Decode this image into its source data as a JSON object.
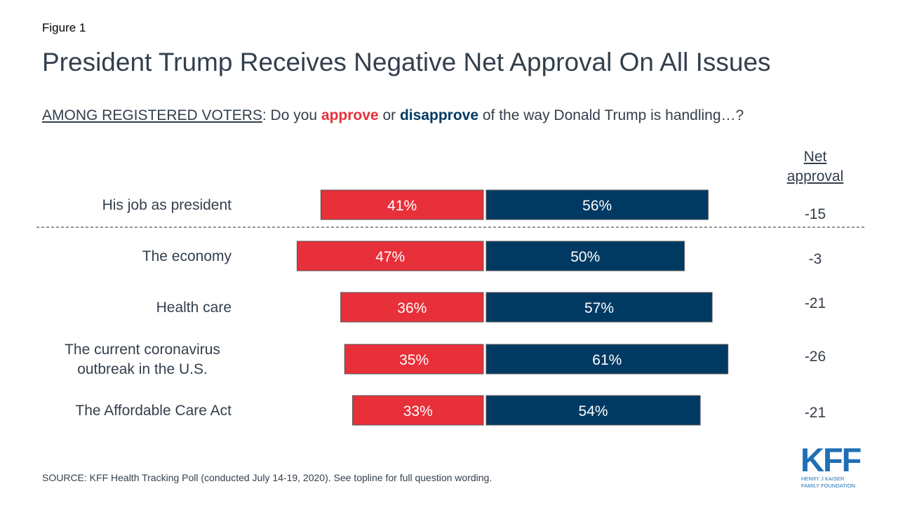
{
  "figure_label": "Figure 1",
  "title": "President Trump Receives Negative Net Approval On All Issues",
  "question": {
    "prefix": "AMONG REGISTERED VOTERS",
    "text1": ": Do you ",
    "approve": "approve",
    "text2": " or ",
    "disapprove": "disapprove",
    "text3": " of the way Donald Trump is handling…?"
  },
  "net_header": [
    "Net",
    "approval"
  ],
  "source": "SOURCE: KFF Health Tracking Poll (conducted July 14-19, 2020). See topline for full question wording.",
  "logo": {
    "main": "KFF",
    "line1": "HENRY J KAISER",
    "line2": "FAMILY FOUNDATION"
  },
  "colors": {
    "approve": "#e8303a",
    "disapprove": "#003a63",
    "text": "#333f4c"
  },
  "chart_data": {
    "type": "bar",
    "orientation": "horizontal-diverging",
    "categories": [
      [
        "His job as president"
      ],
      [
        "The economy"
      ],
      [
        "Health care"
      ],
      [
        "The current coronavirus",
        "outbreak in the U.S."
      ],
      [
        "The Affordable Care Act"
      ]
    ],
    "series": [
      {
        "name": "approve",
        "values": [
          41,
          47,
          36,
          35,
          33
        ],
        "color": "#e8303a"
      },
      {
        "name": "disapprove",
        "values": [
          56,
          50,
          57,
          61,
          54
        ],
        "color": "#003a63"
      }
    ],
    "value_labels": {
      "approve": [
        "41%",
        "47%",
        "36%",
        "35%",
        "33%"
      ],
      "disapprove": [
        "56%",
        "50%",
        "57%",
        "61%",
        "54%"
      ]
    },
    "net_approval": [
      "-15",
      "-3",
      "-21",
      "-26",
      "-21"
    ],
    "separator_after_index": 0
  }
}
